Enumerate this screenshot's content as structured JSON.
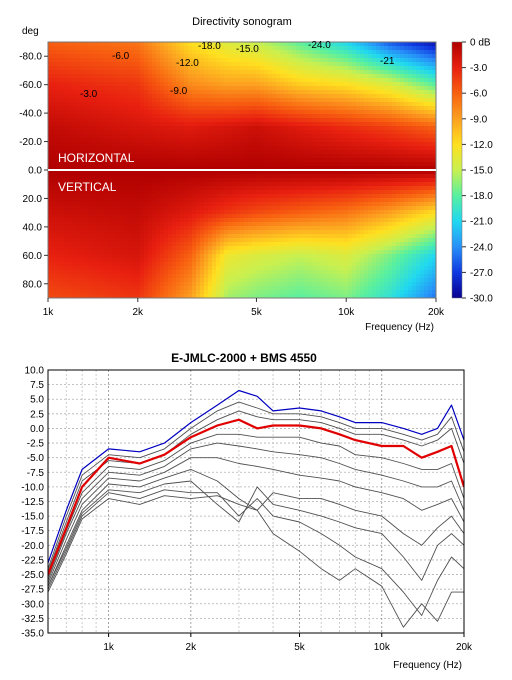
{
  "chart_data": [
    {
      "type": "heatmap",
      "title": "Directivity sonogram",
      "ylabel": "deg",
      "xlabel": "Frequency (Hz)",
      "x_scale": "log",
      "xlim": [
        1000,
        20000
      ],
      "ylim": [
        -90,
        90
      ],
      "x_ticks": [
        1000,
        2000,
        5000,
        10000,
        20000
      ],
      "x_tick_labels": [
        "1k",
        "2k",
        "5k",
        "10k",
        "20k"
      ],
      "y_ticks": [
        -80,
        -60,
        -40,
        -20,
        0,
        20,
        40,
        60,
        80
      ],
      "y_tick_labels": [
        "-80.0",
        "-60.0",
        "-40.0",
        "-20.0",
        "0.0",
        "20.0",
        "40.0",
        "60.0",
        "80.0"
      ],
      "section_labels": [
        "HORIZONTAL",
        "VERTICAL"
      ],
      "colorbar": {
        "range": [
          -30,
          0
        ],
        "tick_labels": [
          "0 dB",
          "-3.0",
          "-6.0",
          "-9.0",
          "-12.0",
          "-15.0",
          "-18.0",
          "-21.0",
          "-24.0",
          "-27.0",
          "-30.0"
        ],
        "colors": [
          "#b00000",
          "#e82010",
          "#f86010",
          "#fca020",
          "#ffe020",
          "#c8f050",
          "#58f0a0",
          "#20d8f0",
          "#2890f8",
          "#1038e0",
          "#080090"
        ]
      },
      "contour_labels": [
        "-6.0",
        "-3.0",
        "-9.0",
        "-12.0",
        "-18.0",
        "-15.0",
        "-24.0",
        "-21"
      ],
      "attenuation_db": {
        "freq_hz": [
          1000,
          2000,
          3000,
          4000,
          5000,
          7000,
          10000,
          14000,
          20000
        ],
        "horizontal": [
          {
            "deg": -90,
            "values": [
              -6,
              -7,
              -12,
              -14,
              -15,
              -18,
              -21,
              -26,
              -29
            ]
          },
          {
            "deg": -60,
            "values": [
              -3,
              -4,
              -8,
              -9,
              -9,
              -11,
              -12,
              -14,
              -18
            ]
          },
          {
            "deg": -30,
            "values": [
              -1,
              -2,
              -2.5,
              -2,
              -1.5,
              -2.5,
              -3.5,
              -4.5,
              -6
            ]
          },
          {
            "deg": 0,
            "values": [
              0,
              0,
              0,
              0,
              0,
              0,
              0,
              0,
              0
            ]
          }
        ],
        "vertical": [
          {
            "deg": 0,
            "values": [
              0,
              0,
              0,
              0,
              0,
              0,
              0,
              0,
              0
            ]
          },
          {
            "deg": 30,
            "values": [
              -1.5,
              -1,
              -2.5,
              -4,
              -5,
              -6,
              -7,
              -9,
              -12
            ]
          },
          {
            "deg": 60,
            "values": [
              -3,
              -2,
              -6,
              -13,
              -14,
              -15,
              -14,
              -17,
              -21
            ]
          },
          {
            "deg": 90,
            "values": [
              -5,
              -4,
              -9,
              -16,
              -17,
              -18,
              -17,
              -20,
              -25
            ]
          }
        ]
      }
    },
    {
      "type": "line",
      "title": "E-JMLC-2000 + BMS 4550",
      "xlabel": "Frequency (Hz)",
      "ylabel": "",
      "x_scale": "log",
      "xlim": [
        600,
        20000
      ],
      "ylim": [
        -35,
        10
      ],
      "x_ticks": [
        1000,
        2000,
        5000,
        10000,
        20000
      ],
      "x_tick_labels": [
        "1k",
        "2k",
        "5k",
        "10k",
        "20k"
      ],
      "y_ticks": [
        10,
        7.5,
        5,
        2.5,
        0,
        -2.5,
        -5,
        -7.5,
        -10,
        -12.5,
        -15,
        -17.5,
        -20,
        -22.5,
        -25,
        -27.5,
        -30,
        -32.5,
        -35
      ],
      "y_tick_labels": [
        "10.0",
        "7.5",
        "5.0",
        "2.5",
        "0.0",
        "-2.5",
        "-5.0",
        "-7.5",
        "-10.0",
        "-12.5",
        "-15.0",
        "-17.5",
        "-20.0",
        "-22.5",
        "-25.0",
        "-27.5",
        "-30.0",
        "-32.5",
        "-35.0"
      ],
      "grid": true,
      "colors": {
        "blue": "#0000c0",
        "red": "#e00000",
        "gray": "#505050"
      },
      "x": [
        600,
        700,
        800,
        1000,
        1300,
        1600,
        2000,
        2500,
        3000,
        3500,
        4000,
        5000,
        6000,
        7000,
        8000,
        10000,
        12000,
        14000,
        16000,
        18000,
        20000
      ],
      "series": [
        {
          "color": "blue",
          "values": [
            -23,
            -14,
            -7,
            -3.5,
            -4,
            -2.5,
            1,
            4,
            6.5,
            5.5,
            3,
            3.5,
            3,
            2,
            1,
            1,
            0,
            -1,
            0,
            4,
            -2
          ]
        },
        {
          "color": "gray",
          "values": [
            -24,
            -15,
            -8,
            -4.5,
            -5,
            -3.5,
            0,
            3,
            4.5,
            3.5,
            2.5,
            2.5,
            2,
            1,
            0,
            0,
            -1,
            -2,
            -1,
            2,
            -4
          ]
        },
        {
          "color": "gray",
          "values": [
            -24.5,
            -16,
            -9,
            -5.5,
            -6,
            -4.5,
            -1,
            1.5,
            3,
            2,
            1.5,
            1.5,
            1,
            0,
            -1,
            -1,
            -2,
            -3,
            -2,
            0,
            -6
          ]
        },
        {
          "color": "red",
          "values": [
            -25,
            -17,
            -10,
            -5,
            -6,
            -4.5,
            -1.5,
            0.5,
            1.5,
            0,
            0.5,
            0.5,
            0,
            -1,
            -2,
            -3,
            -3,
            -5,
            -4,
            -3,
            -10
          ]
        },
        {
          "color": "gray",
          "values": [
            -25.5,
            -17.5,
            -11,
            -6.5,
            -7,
            -5.5,
            -2.5,
            -1,
            -1,
            -1.5,
            -1.5,
            -1.5,
            -2.5,
            -3,
            -4.5,
            -5,
            -6,
            -7,
            -7,
            -6,
            -12
          ]
        },
        {
          "color": "gray",
          "values": [
            -26,
            -18,
            -12,
            -7.5,
            -8,
            -6.5,
            -3.5,
            -2.5,
            -3,
            -3.5,
            -4,
            -4.5,
            -5,
            -6,
            -7,
            -8,
            -9,
            -10,
            -10,
            -9,
            -14
          ]
        },
        {
          "color": "gray",
          "values": [
            -26.5,
            -19,
            -13,
            -8.5,
            -9,
            -7.5,
            -5,
            -5,
            -6,
            -6.5,
            -7,
            -8,
            -8.5,
            -9,
            -10,
            -11,
            -12,
            -14,
            -13,
            -12,
            -16
          ]
        },
        {
          "color": "gray",
          "values": [
            -27,
            -20,
            -14,
            -9.5,
            -10,
            -8.5,
            -7,
            -9,
            -12,
            -14,
            -11,
            -12,
            -12,
            -13,
            -14,
            -15,
            -18,
            -20,
            -17,
            -15,
            -18
          ]
        },
        {
          "color": "gray",
          "values": [
            -27,
            -20.5,
            -14.5,
            -10.5,
            -11,
            -9.5,
            -9,
            -13,
            -16,
            -10,
            -13,
            -14,
            -15,
            -16,
            -17,
            -18,
            -22,
            -26,
            -20,
            -18,
            -20
          ]
        },
        {
          "color": "gray",
          "values": [
            -27.5,
            -21,
            -15,
            -11,
            -12,
            -10.5,
            -11,
            -11,
            -15,
            -12,
            -15,
            -16,
            -18,
            -20,
            -22,
            -24,
            -28,
            -32,
            -26,
            -22,
            -24
          ]
        },
        {
          "color": "gray",
          "values": [
            -28,
            -21.5,
            -15.5,
            -12,
            -13,
            -11.5,
            -12,
            -11.5,
            -13,
            -14,
            -18,
            -21,
            -24,
            -26,
            -24,
            -27,
            -34,
            -30,
            -33,
            -28,
            -28
          ]
        }
      ]
    }
  ]
}
